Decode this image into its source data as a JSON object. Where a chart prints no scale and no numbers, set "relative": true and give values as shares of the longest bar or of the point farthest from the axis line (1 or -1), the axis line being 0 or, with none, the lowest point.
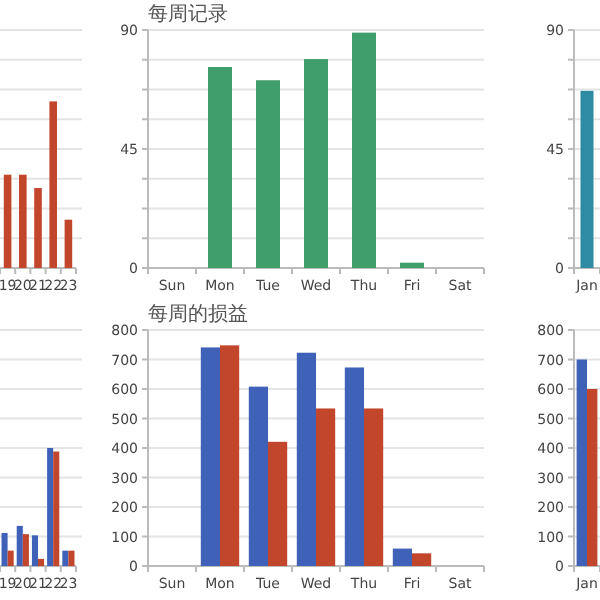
{
  "chart_data": [
    {
      "type": "bar",
      "relative": true,
      "categories": [
        "19",
        "20",
        "21",
        "22",
        "23"
      ],
      "grid": "y",
      "tick_labels": "x",
      "series": [
        {
          "color": "#c2462c",
          "values": [
            0.56,
            0.56,
            0.48,
            1,
            0.29
          ]
        }
      ]
    },
    {
      "type": "bar",
      "title": "每周记录",
      "categories": [
        "Sun",
        "Mon",
        "Tue",
        "Wed",
        "Thu",
        "Fri",
        "Sat"
      ],
      "ylim": [
        0,
        90
      ],
      "grid": "y",
      "yticks": [
        0,
        {
          "value": 11.25,
          "label": null
        },
        {
          "value": 22.5,
          "label": null
        },
        {
          "value": 33.75,
          "label": null
        },
        45,
        {
          "value": 56.25,
          "label": null
        },
        {
          "value": 67.5,
          "label": null
        },
        {
          "value": 78.75,
          "label": null
        },
        90
      ],
      "series": [
        {
          "color": "#3f9e6c",
          "values": [
            0,
            76,
            71,
            79,
            89,
            2,
            0
          ]
        }
      ]
    },
    {
      "type": "bar",
      "categories": [
        "Jan"
      ],
      "ylim": [
        0,
        90
      ],
      "grid": "y",
      "yticks": [
        0,
        {
          "value": 11.25,
          "label": null
        },
        {
          "value": 22.5,
          "label": null
        },
        {
          "value": 33.75,
          "label": null
        },
        45,
        {
          "value": 56.25,
          "label": null
        },
        {
          "value": 67.5,
          "label": null
        },
        {
          "value": 78.75,
          "label": null
        },
        90
      ],
      "series": [
        {
          "color": "#2f8ba3",
          "values": [
            67
          ]
        }
      ]
    },
    {
      "type": "bar",
      "relative": true,
      "categories": [
        "19",
        "20",
        "21",
        "22",
        "23"
      ],
      "grid": "y",
      "tick_labels": "x",
      "series": [
        {
          "color": "#3f62b8",
          "values": [
            0.28,
            0.34,
            0.26,
            1,
            0.13
          ]
        },
        {
          "color": "#c2462c",
          "values": [
            0.13,
            0.27,
            0.06,
            0.97,
            0.13
          ]
        }
      ]
    },
    {
      "type": "bar",
      "title": "每周的损益",
      "categories": [
        "Sun",
        "Mon",
        "Tue",
        "Wed",
        "Thu",
        "Fri",
        "Sat"
      ],
      "ylim": [
        0,
        800
      ],
      "grid": "y",
      "yticks": [
        0,
        100,
        200,
        300,
        400,
        500,
        600,
        700,
        800
      ],
      "series": [
        {
          "color": "#3f62b8",
          "values": [
            0,
            741,
            608,
            723,
            673,
            59,
            0
          ]
        },
        {
          "color": "#c2462c",
          "values": [
            0,
            748,
            421,
            534,
            534,
            43,
            0
          ]
        }
      ]
    },
    {
      "type": "bar",
      "categories": [
        "Jan"
      ],
      "ylim": [
        0,
        800
      ],
      "grid": "y",
      "yticks": [
        0,
        100,
        200,
        300,
        400,
        500,
        600,
        700,
        800
      ],
      "series": [
        {
          "color": "#3f62b8",
          "values": [
            700
          ]
        },
        {
          "color": "#c2462c",
          "values": [
            600
          ]
        }
      ]
    }
  ]
}
